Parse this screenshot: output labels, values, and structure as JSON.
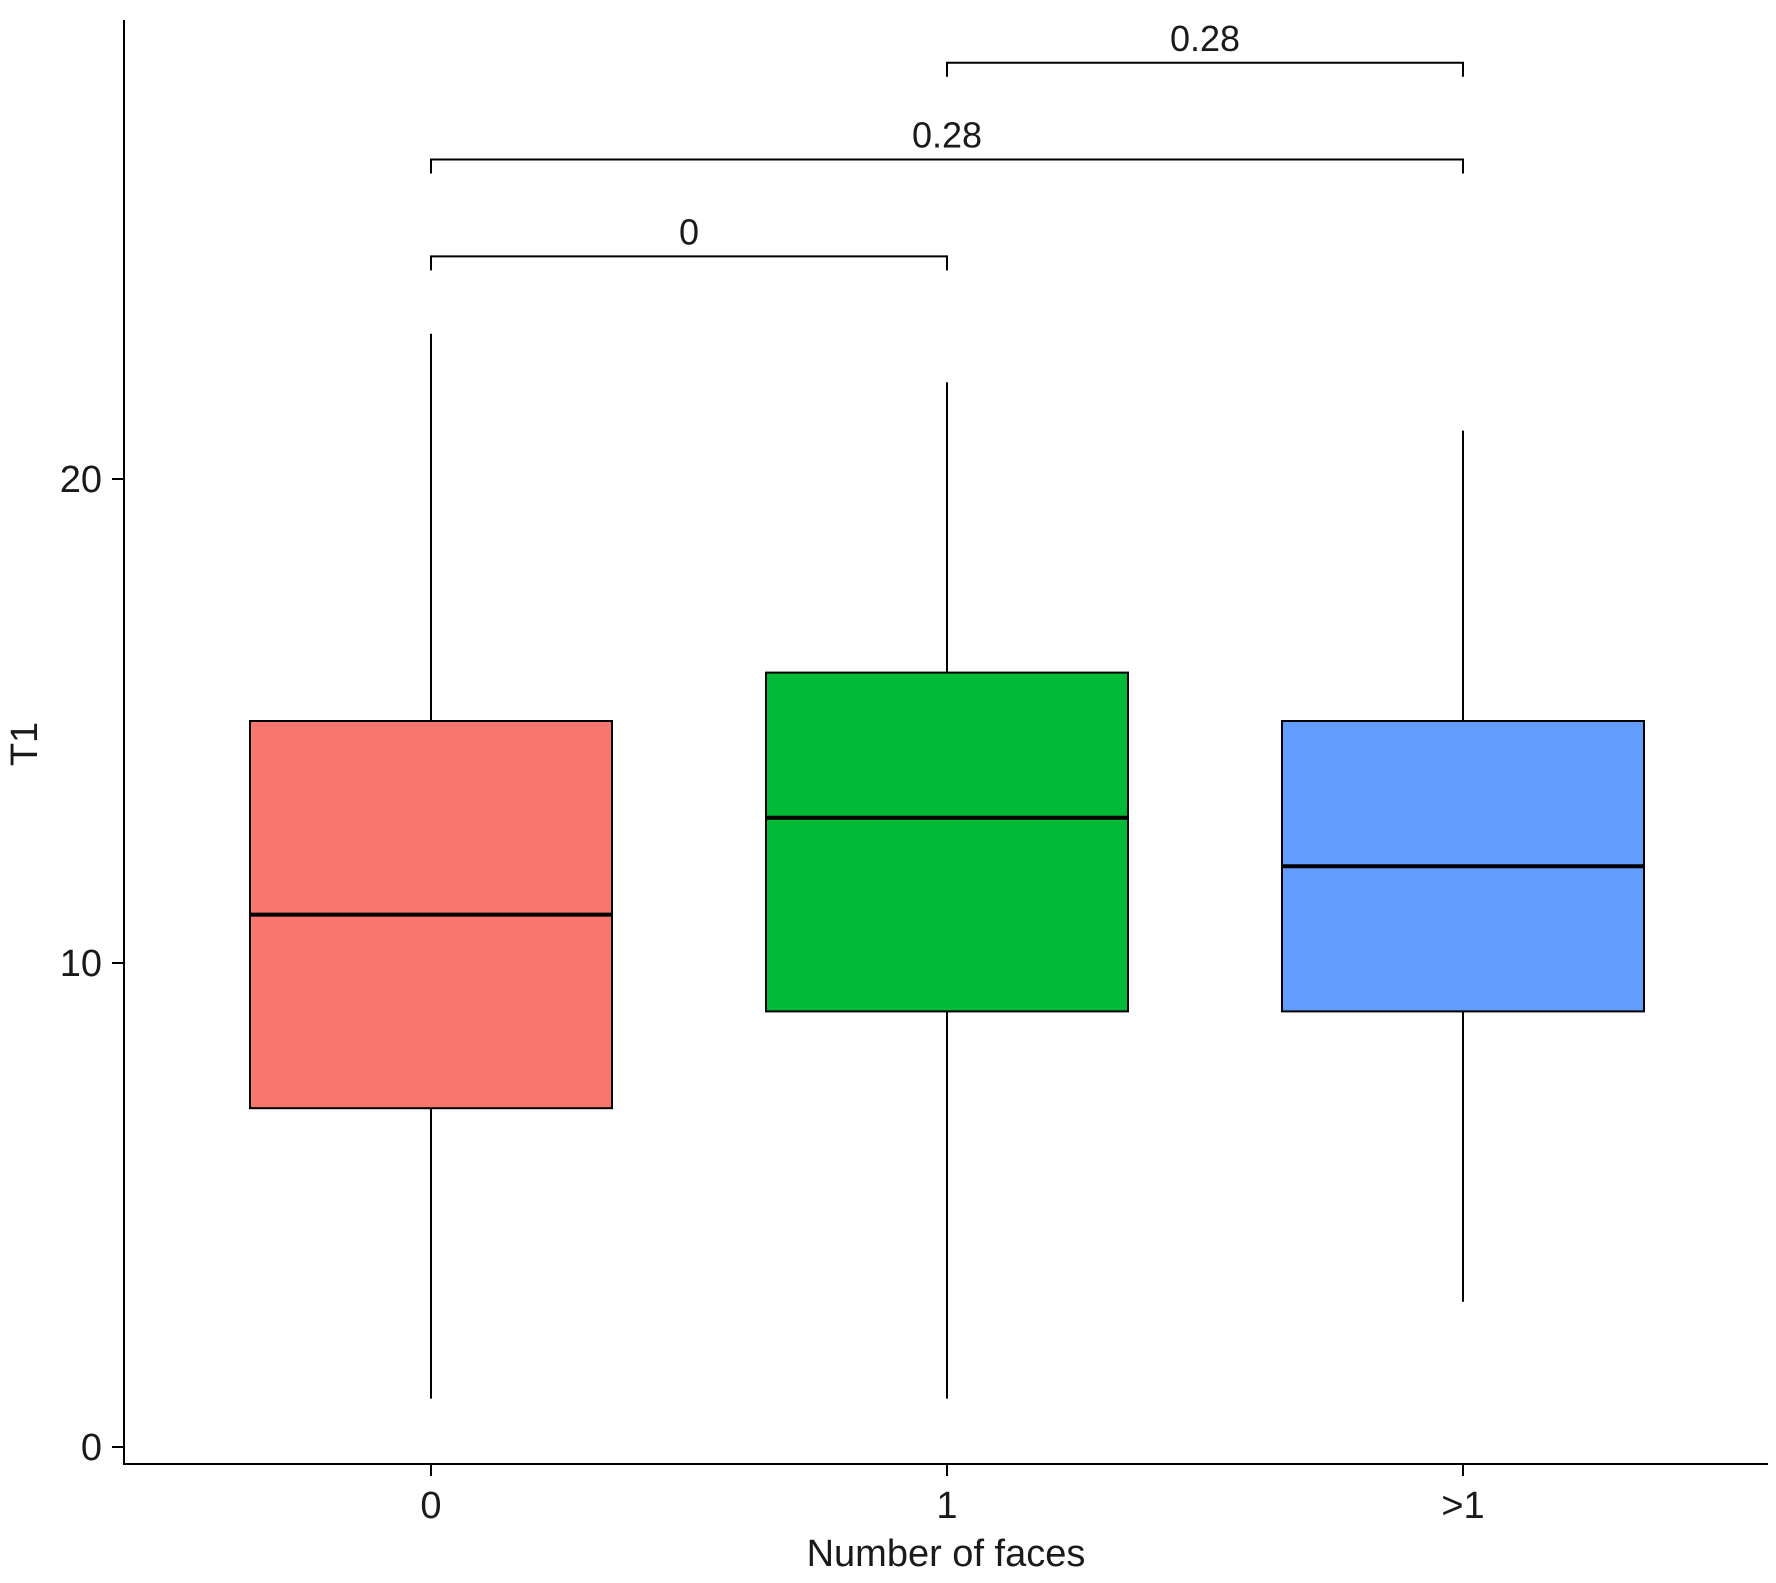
{
  "chart_data": {
    "type": "boxplot",
    "title": "",
    "xlabel": "Number of faces",
    "ylabel": "T1",
    "ylim": [
      -0.3,
      29.8
    ],
    "yticks": [
      0,
      10,
      20
    ],
    "grid": false,
    "legend": "none",
    "categories": [
      "0",
      "1",
      ">1"
    ],
    "boxes": [
      {
        "category": "0",
        "whisker_low": 1,
        "q1": 7,
        "median": 11,
        "q3": 15,
        "whisker_high": 23,
        "color": "#F8766D"
      },
      {
        "category": "1",
        "whisker_low": 1,
        "q1": 9,
        "median": 13,
        "q3": 16,
        "whisker_high": 22,
        "color": "#00BA38"
      },
      {
        "category": ">1",
        "whisker_low": 3,
        "q1": 9,
        "median": 12,
        "q3": 15,
        "whisker_high": 21,
        "color": "#619CFF"
      }
    ],
    "comparisons": [
      {
        "from": "0",
        "to": "1",
        "label": "0",
        "y": 24.6
      },
      {
        "from": "0",
        "to": ">1",
        "label": "0.28",
        "y": 26.6
      },
      {
        "from": "1",
        "to": ">1",
        "label": "0.28",
        "y": 28.6
      }
    ]
  }
}
